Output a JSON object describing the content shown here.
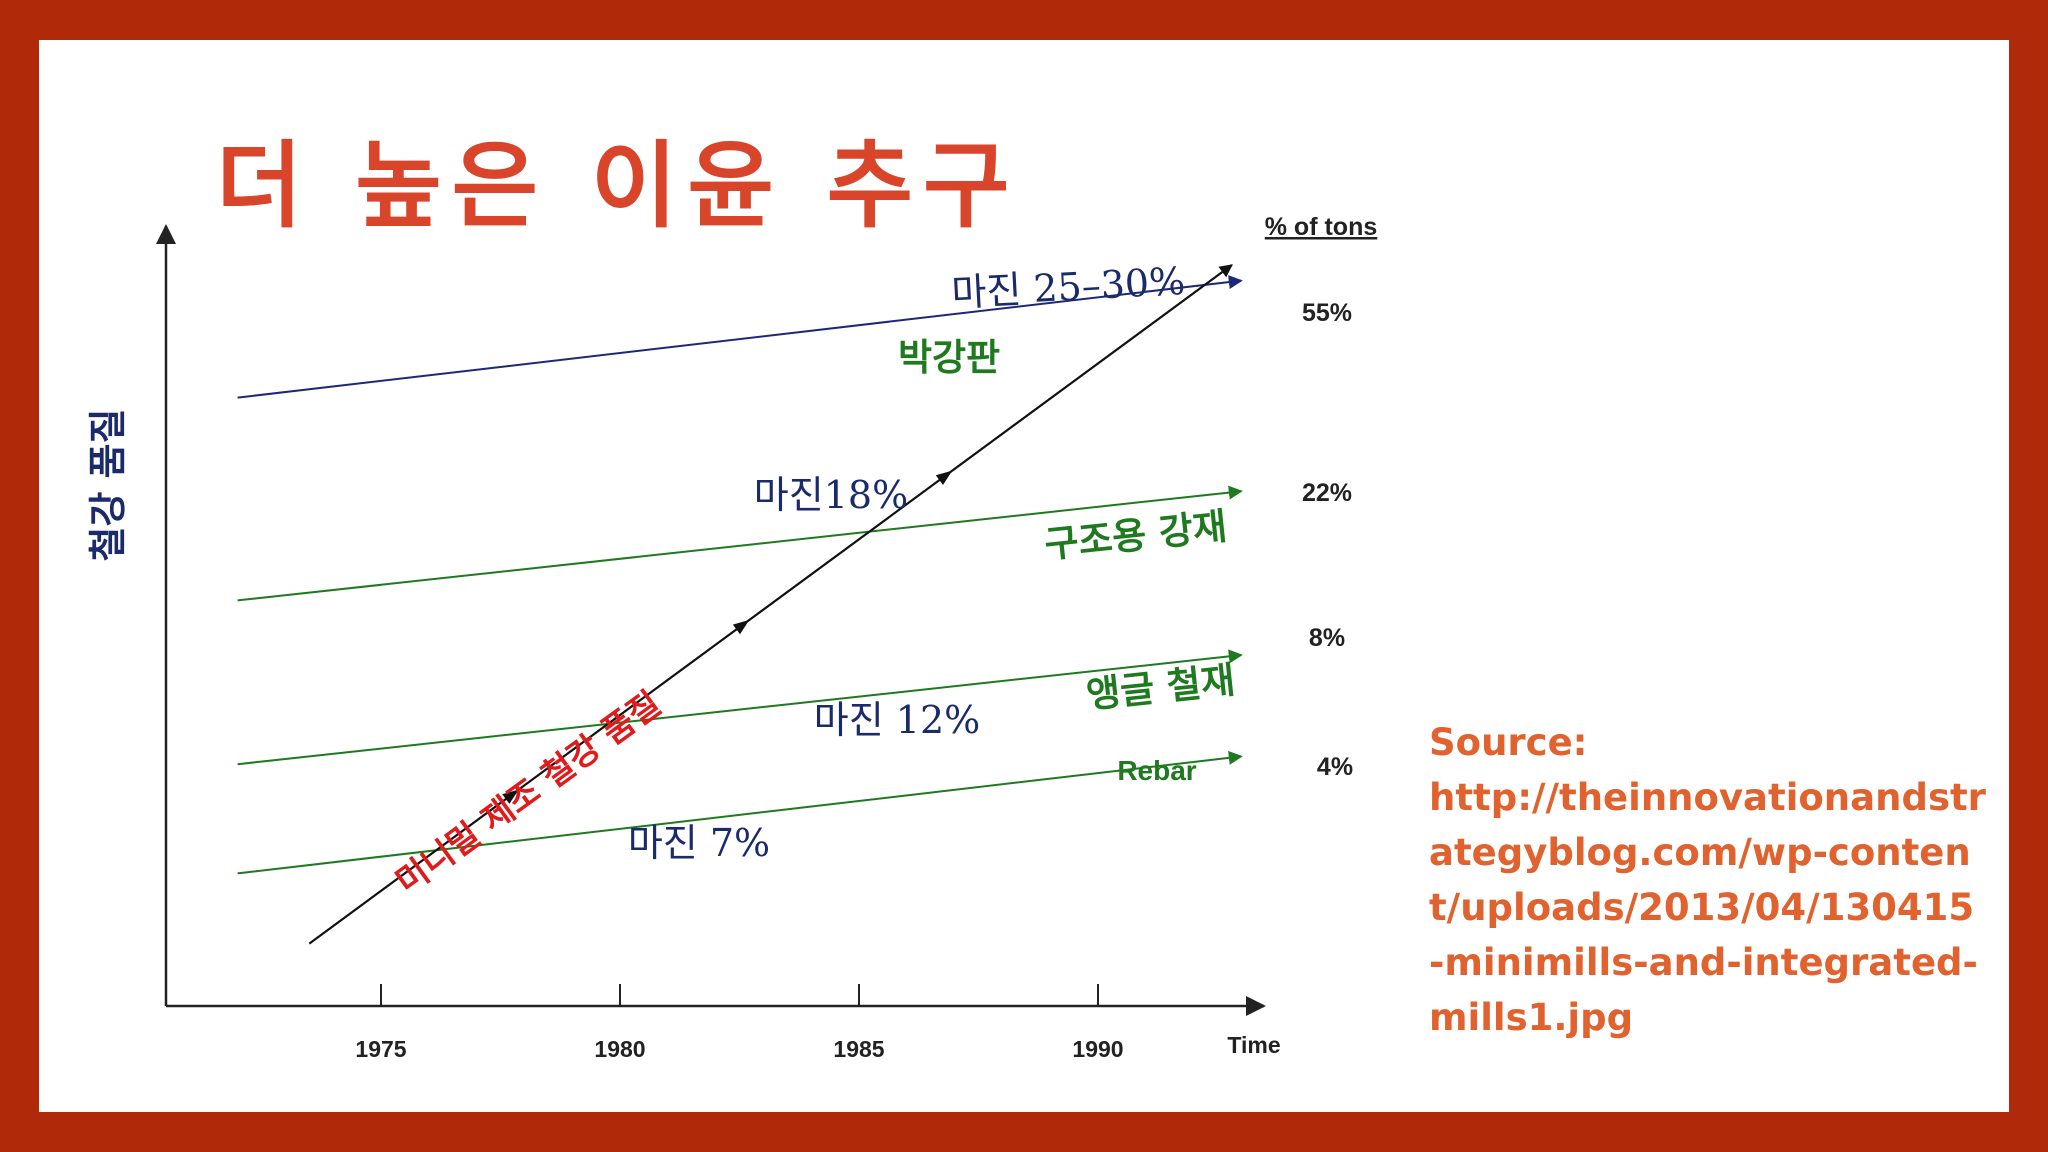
{
  "slide": {
    "title": "더 높은 이윤 추구",
    "source_label": "Source:",
    "source_url": "http://theinnovationandstrategyblog.com/wp-content/uploads/2013/04/130415-minimills-and-integrated-mills1.jpg"
  },
  "colors": {
    "frame": "#b02a0a",
    "title": "#d8452a",
    "source": "#e0622e",
    "sheet": "#1e2878",
    "product": "#1f7a1f",
    "margin_text": "#1a2a6b",
    "minimill": "#e01b1b",
    "axis": "#222222"
  },
  "chart_data": {
    "type": "line",
    "title": "",
    "xlabel": "Time",
    "ylabel": "철강 품질",
    "xlim": [
      1971.5,
      1994
    ],
    "ylim": [
      0,
      100
    ],
    "x_ticks": [
      1975,
      1980,
      1985,
      1990
    ],
    "percent_header": "% of tons",
    "series": [
      {
        "name": "박강판",
        "x": [
          1972,
          1993
        ],
        "y": [
          78,
          93
        ],
        "share": "55%"
      },
      {
        "name": "구조용 강재",
        "x": [
          1972,
          1993
        ],
        "y": [
          52,
          66
        ],
        "share": "22%"
      },
      {
        "name": "앵글 철재",
        "x": [
          1972,
          1993
        ],
        "y": [
          31,
          45
        ],
        "share": "8%"
      },
      {
        "name": "Rebar",
        "x": [
          1972,
          1993
        ],
        "y": [
          17,
          32
        ],
        "share": "4%"
      }
    ],
    "minimill_series": {
      "name": "미니밀 제조 철강 품질",
      "x": [
        1973.5,
        1992.8
      ],
      "y": [
        8,
        95
      ]
    },
    "annotations": [
      {
        "text": "마진 25–30%",
        "x": 1984.8,
        "y": 91
      },
      {
        "text": "마진18%",
        "x": 1982.3,
        "y": 64
      },
      {
        "text": "마진 12%",
        "x": 1981.7,
        "y": 34
      },
      {
        "text": "마진 7%",
        "x": 1978.7,
        "y": 16
      }
    ]
  }
}
